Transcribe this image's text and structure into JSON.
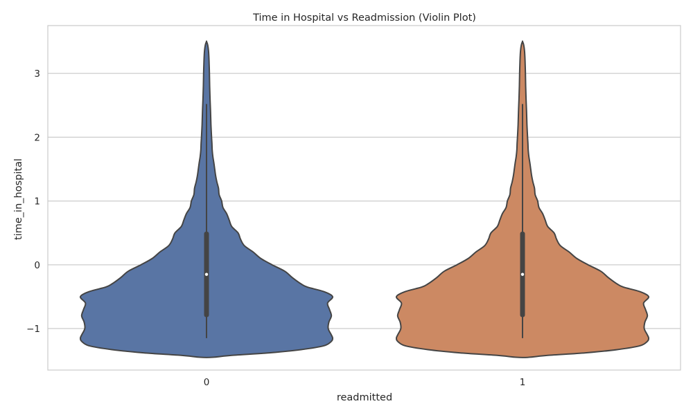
{
  "chart_data": {
    "type": "violin",
    "title": "Time in Hospital vs Readmission (Violin Plot)",
    "xlabel": "readmitted",
    "ylabel": "time_in_hospital",
    "categories": [
      "0",
      "1"
    ],
    "ylim": [
      -1.65,
      3.75
    ],
    "yticks": [
      -1,
      0,
      1,
      2,
      3
    ],
    "ytick_labels": [
      "−1",
      "0",
      "1",
      "2",
      "3"
    ],
    "grid": true,
    "series": [
      {
        "category": "0",
        "color": "#5975a4",
        "whisker": [
          -1.15,
          2.52
        ],
        "box": [
          -0.82,
          0.52
        ],
        "median": -0.15,
        "density": [
          [
            -1.45,
            0.05
          ],
          [
            -1.42,
            0.2
          ],
          [
            -1.38,
            0.5
          ],
          [
            -1.33,
            0.75
          ],
          [
            -1.27,
            0.93
          ],
          [
            -1.2,
            0.99
          ],
          [
            -1.15,
            1.0
          ],
          [
            -1.1,
            0.99
          ],
          [
            -1.0,
            0.965
          ],
          [
            -0.9,
            0.97
          ],
          [
            -0.8,
            0.99
          ],
          [
            -0.7,
            0.975
          ],
          [
            -0.6,
            0.96
          ],
          [
            -0.5,
            1.0
          ],
          [
            -0.42,
            0.93
          ],
          [
            -0.35,
            0.8
          ],
          [
            -0.3,
            0.75
          ],
          [
            -0.2,
            0.68
          ],
          [
            -0.1,
            0.62
          ],
          [
            0.0,
            0.52
          ],
          [
            0.1,
            0.43
          ],
          [
            0.2,
            0.37
          ],
          [
            0.3,
            0.3
          ],
          [
            0.4,
            0.27
          ],
          [
            0.5,
            0.25
          ],
          [
            0.6,
            0.2
          ],
          [
            0.7,
            0.18
          ],
          [
            0.8,
            0.16
          ],
          [
            0.9,
            0.13
          ],
          [
            1.0,
            0.12
          ],
          [
            1.1,
            0.1
          ],
          [
            1.2,
            0.095
          ],
          [
            1.3,
            0.082
          ],
          [
            1.4,
            0.072
          ],
          [
            1.5,
            0.065
          ],
          [
            1.6,
            0.058
          ],
          [
            1.7,
            0.05
          ],
          [
            1.8,
            0.045
          ],
          [
            1.9,
            0.043
          ],
          [
            2.0,
            0.04
          ],
          [
            2.2,
            0.035
          ],
          [
            2.4,
            0.032
          ],
          [
            2.6,
            0.028
          ],
          [
            2.8,
            0.025
          ],
          [
            3.0,
            0.023
          ],
          [
            3.2,
            0.02
          ],
          [
            3.35,
            0.016
          ],
          [
            3.45,
            0.009
          ],
          [
            3.5,
            0.0
          ]
        ]
      },
      {
        "category": "1",
        "color": "#cc8963",
        "whisker": [
          -1.15,
          2.52
        ],
        "box": [
          -0.82,
          0.52
        ],
        "median": -0.15,
        "density": [
          [
            -1.45,
            0.05
          ],
          [
            -1.42,
            0.2
          ],
          [
            -1.38,
            0.5
          ],
          [
            -1.33,
            0.75
          ],
          [
            -1.27,
            0.93
          ],
          [
            -1.2,
            0.99
          ],
          [
            -1.15,
            1.0
          ],
          [
            -1.1,
            0.99
          ],
          [
            -1.0,
            0.965
          ],
          [
            -0.9,
            0.97
          ],
          [
            -0.8,
            0.99
          ],
          [
            -0.7,
            0.975
          ],
          [
            -0.6,
            0.96
          ],
          [
            -0.5,
            1.0
          ],
          [
            -0.42,
            0.93
          ],
          [
            -0.35,
            0.8
          ],
          [
            -0.3,
            0.75
          ],
          [
            -0.2,
            0.68
          ],
          [
            -0.1,
            0.62
          ],
          [
            0.0,
            0.52
          ],
          [
            0.1,
            0.43
          ],
          [
            0.2,
            0.37
          ],
          [
            0.3,
            0.3
          ],
          [
            0.4,
            0.27
          ],
          [
            0.5,
            0.25
          ],
          [
            0.6,
            0.2
          ],
          [
            0.7,
            0.18
          ],
          [
            0.8,
            0.16
          ],
          [
            0.9,
            0.13
          ],
          [
            1.0,
            0.12
          ],
          [
            1.1,
            0.1
          ],
          [
            1.2,
            0.095
          ],
          [
            1.3,
            0.082
          ],
          [
            1.4,
            0.072
          ],
          [
            1.5,
            0.065
          ],
          [
            1.6,
            0.058
          ],
          [
            1.7,
            0.05
          ],
          [
            1.8,
            0.045
          ],
          [
            1.9,
            0.043
          ],
          [
            2.0,
            0.04
          ],
          [
            2.2,
            0.035
          ],
          [
            2.4,
            0.032
          ],
          [
            2.6,
            0.028
          ],
          [
            2.8,
            0.025
          ],
          [
            3.0,
            0.023
          ],
          [
            3.2,
            0.02
          ],
          [
            3.35,
            0.016
          ],
          [
            3.45,
            0.009
          ],
          [
            3.5,
            0.0
          ]
        ]
      }
    ]
  }
}
